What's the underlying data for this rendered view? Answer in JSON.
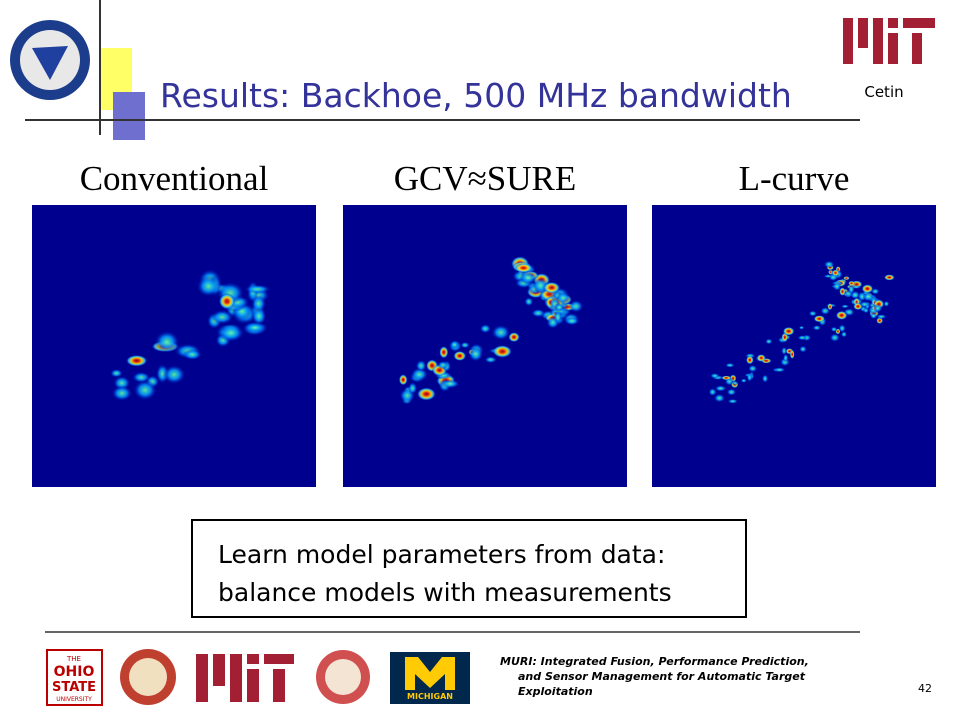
{
  "header": {
    "title": "Results: Backhoe, 500 MHz bandwidth",
    "author": "Cetin"
  },
  "panels": [
    {
      "label": "Conventional"
    },
    {
      "label": "GCV≈SURE"
    },
    {
      "label": "L-curve"
    }
  ],
  "callout": {
    "lines": [
      "Learn model parameters from data:",
      "balance models with measurements"
    ]
  },
  "footer": {
    "lines": [
      "MURI: Integrated Fusion, Performance Prediction,",
      "and Sensor Management for Automatic Target",
      "Exploitation"
    ],
    "page_number": "42",
    "logos": {
      "ohio": [
        "THE",
        "OHIO",
        "STATE",
        "UNIVERSITY"
      ],
      "michigan": "MICHIGAN"
    }
  }
}
